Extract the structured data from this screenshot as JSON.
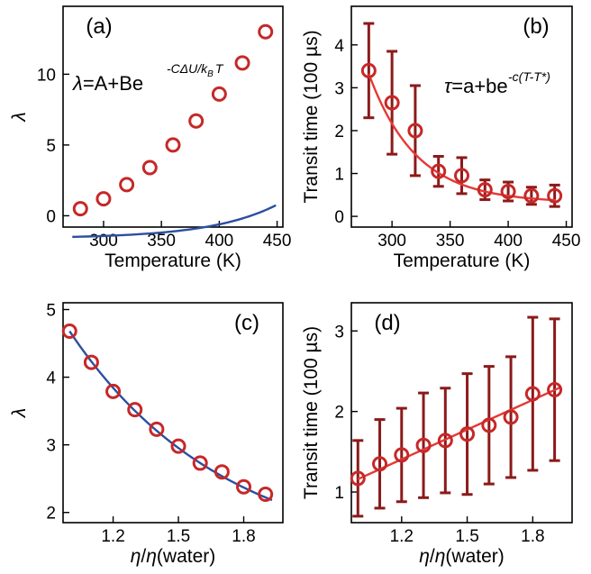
{
  "chart_data": [
    {
      "panel": "(a)",
      "type": "scatter",
      "xlabel": "Temperature (K)",
      "ylabel": "λ",
      "xlim": [
        265,
        455
      ],
      "ylim": [
        -0.8,
        14.8
      ],
      "xticks": [
        300,
        350,
        400,
        450
      ],
      "yticks": [
        0,
        5,
        10
      ],
      "equation": {
        "lhs": "λ",
        "mid": "=A+Be",
        "exp": "-CΔU/k",
        "exp_sub": "B",
        "exp_tail": "T"
      },
      "x": [
        280,
        300,
        320,
        340,
        360,
        380,
        400,
        420,
        440
      ],
      "y": [
        0.5,
        1.2,
        2.2,
        3.4,
        5.0,
        6.7,
        8.6,
        10.8,
        13.0
      ],
      "fit": {
        "A": -1.6,
        "B": 0.0935,
        "k": 0.0175,
        "x0": 273,
        "x1": 449
      },
      "marker_color": "#C62828",
      "fit_color": "#2B4FA0"
    },
    {
      "panel": "(b)",
      "type": "scatter",
      "xlabel": "Temperature (K)",
      "ylabel": "Transit time (100 µs)",
      "xlim": [
        265,
        455
      ],
      "ylim": [
        -0.25,
        4.9
      ],
      "xticks": [
        300,
        350,
        400,
        450
      ],
      "yticks": [
        0,
        1,
        2,
        3,
        4
      ],
      "equation": {
        "lhs": "τ",
        "mid": "=a+be",
        "exp": "-c(T-T*)"
      },
      "x": [
        280,
        300,
        320,
        340,
        360,
        380,
        400,
        420,
        440
      ],
      "y": [
        3.4,
        2.65,
        2.0,
        1.05,
        0.95,
        0.62,
        0.58,
        0.48,
        0.48
      ],
      "err": [
        1.1,
        1.2,
        1.05,
        0.35,
        0.42,
        0.23,
        0.22,
        0.2,
        0.25
      ],
      "fit": {
        "a": 0.32,
        "b": 3.4,
        "c": 0.0245,
        "Tstar": 275,
        "x0": 280,
        "x1": 441
      },
      "marker_color": "#C62828",
      "err_color": "#8B1A1A",
      "fit_color": "#E53935"
    },
    {
      "panel": "(c)",
      "type": "scatter",
      "xlabel": "η/η(water)",
      "ylabel": "λ",
      "xlim": [
        0.97,
        1.98
      ],
      "ylim": [
        1.85,
        5.1
      ],
      "xticks": [
        1.2,
        1.5,
        1.8
      ],
      "yticks": [
        2,
        3,
        4,
        5
      ],
      "x": [
        1.0,
        1.1,
        1.2,
        1.3,
        1.4,
        1.5,
        1.6,
        1.7,
        1.8,
        1.9
      ],
      "y": [
        4.68,
        4.22,
        3.79,
        3.52,
        3.23,
        2.98,
        2.73,
        2.6,
        2.38,
        2.27
      ],
      "fit": {
        "a": 1.25,
        "b": 3.43,
        "c": 1.4,
        "x0": 1.0,
        "x1": 1.93
      },
      "marker_color": "#C62828",
      "fit_color": "#2B4FA0"
    },
    {
      "panel": "(d)",
      "type": "scatter",
      "xlabel": "η/η(water)",
      "ylabel": "Transit time (100 µs)",
      "xlim": [
        0.97,
        1.98
      ],
      "ylim": [
        0.62,
        3.35
      ],
      "xticks": [
        1.2,
        1.5,
        1.8
      ],
      "yticks": [
        1,
        2,
        3
      ],
      "x": [
        1.0,
        1.1,
        1.2,
        1.3,
        1.4,
        1.5,
        1.6,
        1.7,
        1.8,
        1.9
      ],
      "y": [
        1.17,
        1.35,
        1.46,
        1.58,
        1.64,
        1.72,
        1.83,
        1.93,
        2.22,
        2.27
      ],
      "err": [
        0.47,
        0.55,
        0.58,
        0.65,
        0.65,
        0.75,
        0.73,
        0.75,
        0.95,
        0.88
      ],
      "fit": {
        "slope": 1.23,
        "intercept": -0.07,
        "x0": 1.0,
        "x1": 1.93
      },
      "marker_color": "#C62828",
      "err_color": "#8B1A1A",
      "fit_color": "#E53935"
    }
  ]
}
